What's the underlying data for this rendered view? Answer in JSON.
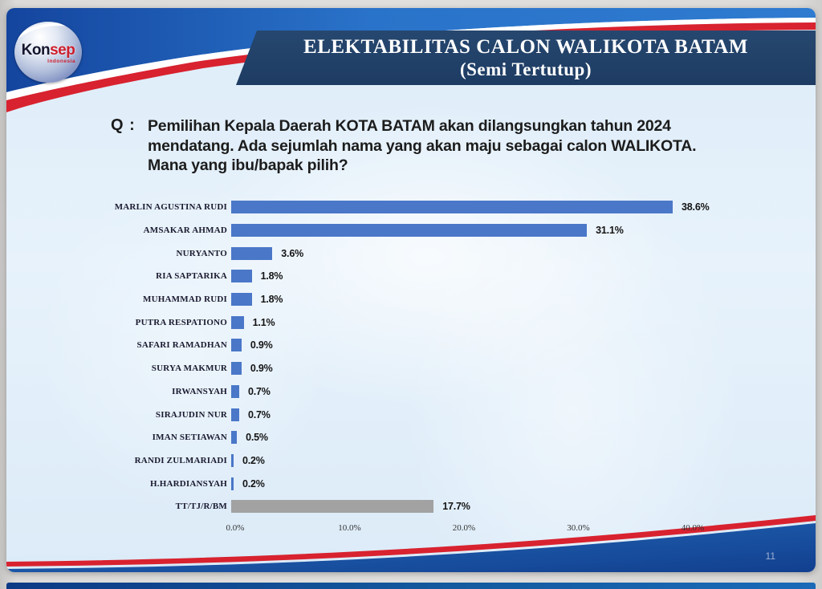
{
  "slide": {
    "logo": {
      "brand_part1": "Kon",
      "brand_part2": "sep",
      "subtitle": "Indonesia"
    },
    "header": {
      "title_line1": "ELEKTABILITAS CALON WALIKOTA BATAM",
      "title_line2": "(Semi Tertutup)"
    },
    "question": {
      "label": "Q :",
      "lines": [
        "Pemilihan Kepala Daerah KOTA BATAM akan dilangsungkan tahun 2024",
        "mendatang. Ada sejumlah nama yang akan maju sebagai calon WALIKOTA.",
        "Mana yang ibu/bapak pilih?"
      ]
    },
    "page_number": "11"
  },
  "colors": {
    "bar_blue": "#4a77c8",
    "bar_gray": "#a2a2a2",
    "banner_navy": "#1f3e68",
    "band_blue": "#1b57b0",
    "stripe_red": "#d8222f"
  },
  "chart_data": {
    "type": "bar",
    "orientation": "horizontal",
    "title": "ELEKTABILITAS CALON WALIKOTA BATAM (Semi Tertutup)",
    "xlabel": "",
    "ylabel": "",
    "xlim": [
      0,
      40
    ],
    "grid": false,
    "legend": false,
    "categories": [
      "MARLIN AGUSTINA RUDI",
      "AMSAKAR AHMAD",
      "NURYANTO",
      "RIA SAPTARIKA",
      "MUHAMMAD RUDI",
      "PUTRA RESPATIONO",
      "SAFARI RAMADHAN",
      "SURYA MAKMUR",
      "IRWANSYAH",
      "SIRAJUDIN NUR",
      "IMAN SETIAWAN",
      "RANDI ZULMARIADI",
      "H.HARDIANSYAH",
      "TT/TJ/R/BM"
    ],
    "values": [
      38.6,
      31.1,
      3.6,
      1.8,
      1.8,
      1.1,
      0.9,
      0.9,
      0.7,
      0.7,
      0.5,
      0.2,
      0.2,
      17.7
    ],
    "value_labels": [
      "38.6%",
      "31.1%",
      "3.6%",
      "1.8%",
      "1.8%",
      "1.1%",
      "0.9%",
      "0.9%",
      "0.7%",
      "0.7%",
      "0.5%",
      "0.2%",
      "0.2%",
      "17.7%"
    ],
    "x_ticks": [
      "0.0%",
      "10.0%",
      "20.0%",
      "30.0%",
      "40.0%"
    ],
    "gray_category": "TT/TJ/R/BM",
    "bar_colors": {
      "default": "#4a77c8",
      "gray": "#a2a2a2"
    }
  }
}
